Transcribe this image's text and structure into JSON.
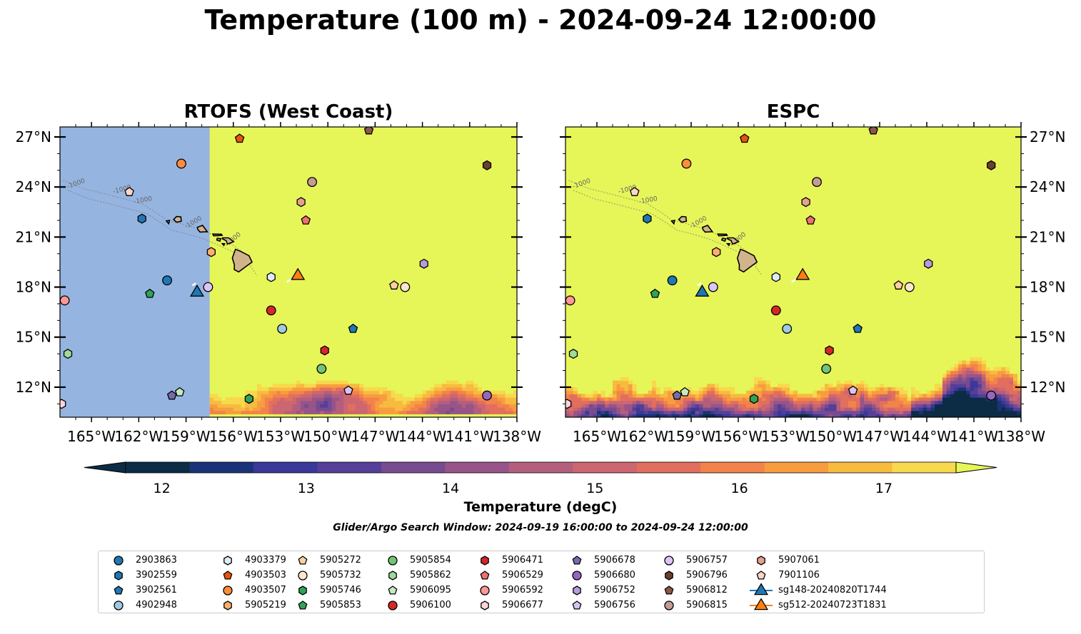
{
  "title": "Temperature (100 m) - 2024-09-24 12:00:00",
  "panels": [
    {
      "title": "RTOFS (West Coast)",
      "variant": "rtofs"
    },
    {
      "title": "ESPC",
      "variant": "espc"
    }
  ],
  "axes": {
    "lon_ticks": [
      "165°W",
      "162°W",
      "159°W",
      "156°W",
      "153°W",
      "150°W",
      "147°W",
      "144°W",
      "141°W",
      "138°W"
    ],
    "lat_ticks": [
      "27°N",
      "24°N",
      "21°N",
      "18°N",
      "15°N",
      "12°N"
    ],
    "lon_range": [
      -167,
      -138
    ],
    "lat_range": [
      10.2,
      27.6
    ]
  },
  "colorbar": {
    "label": "Temperature (degC)",
    "ticks": [
      "12",
      "13",
      "14",
      "15",
      "16",
      "17"
    ],
    "min": 11.75,
    "max": 17.5,
    "colors": [
      "#0c2c45",
      "#1a3378",
      "#3a3898",
      "#553f98",
      "#774b90",
      "#975488",
      "#b45e7e",
      "#cc6670",
      "#e26f5e",
      "#f2834a",
      "#f79d3f",
      "#f7bb40",
      "#f8d94e"
    ],
    "under_color": "#0c2c45",
    "over_color": "#e6f658",
    "land_mask_color": "#96b4e0"
  },
  "contour_label": "-1000",
  "search_window": "Glider/Argo Search Window: 2024-09-19 16:00:00 to 2024-09-24 12:00:00",
  "legend": [
    {
      "label": "2903863",
      "color": "#1f77b4",
      "shape": "circle"
    },
    {
      "label": "3902559",
      "color": "#1f77b4",
      "shape": "hexagon"
    },
    {
      "label": "3902561",
      "color": "#1f77b4",
      "shape": "pentagon"
    },
    {
      "label": "4902948",
      "color": "#9ecae1",
      "shape": "circle"
    },
    {
      "label": "4903379",
      "color": "#deebf7",
      "shape": "hexagon"
    },
    {
      "label": "4903503",
      "color": "#e6550d",
      "shape": "pentagon"
    },
    {
      "label": "4903507",
      "color": "#fd8d3c",
      "shape": "circle"
    },
    {
      "label": "5905219",
      "color": "#fdae6b",
      "shape": "hexagon"
    },
    {
      "label": "5905272",
      "color": "#fdd0a2",
      "shape": "pentagon"
    },
    {
      "label": "5905732",
      "color": "#fee6ce",
      "shape": "circle"
    },
    {
      "label": "5905746",
      "color": "#31a354",
      "shape": "hexagon"
    },
    {
      "label": "5905853",
      "color": "#31a354",
      "shape": "pentagon"
    },
    {
      "label": "5905854",
      "color": "#74c476",
      "shape": "circle"
    },
    {
      "label": "5905862",
      "color": "#a1d99b",
      "shape": "hexagon"
    },
    {
      "label": "5906095",
      "color": "#c7e9c0",
      "shape": "pentagon"
    },
    {
      "label": "5906100",
      "color": "#d62728",
      "shape": "circle"
    },
    {
      "label": "5906471",
      "color": "#d62728",
      "shape": "hexagon"
    },
    {
      "label": "5906529",
      "color": "#f07070",
      "shape": "pentagon"
    },
    {
      "label": "5906592",
      "color": "#ff9896",
      "shape": "circle"
    },
    {
      "label": "5906677",
      "color": "#ffd6d6",
      "shape": "hexagon"
    },
    {
      "label": "5906678",
      "color": "#756bb1",
      "shape": "pentagon"
    },
    {
      "label": "5906680",
      "color": "#9467bd",
      "shape": "circle"
    },
    {
      "label": "5906752",
      "color": "#b39ddb",
      "shape": "hexagon"
    },
    {
      "label": "5906756",
      "color": "#d8c4f0",
      "shape": "pentagon"
    },
    {
      "label": "5906757",
      "color": "#dcc6f5",
      "shape": "circle"
    },
    {
      "label": "5906796",
      "color": "#6b3e2e",
      "shape": "hexagon"
    },
    {
      "label": "5906812",
      "color": "#8c564b",
      "shape": "pentagon"
    },
    {
      "label": "5906815",
      "color": "#c49c94",
      "shape": "circle"
    },
    {
      "label": "5907061",
      "color": "#e6a08c",
      "shape": "hexagon"
    },
    {
      "label": "7901106",
      "color": "#fdd5c8",
      "shape": "pentagon"
    },
    {
      "label": "sg148-20240820T1744",
      "color": "#1f77b4",
      "shape": "triangle"
    },
    {
      "label": "sg512-20240723T1831",
      "color": "#ff7f0e",
      "shape": "triangle"
    }
  ],
  "observations": [
    {
      "id": "2903863",
      "lon": -160.2,
      "lat": 18.4
    },
    {
      "id": "3902559",
      "lon": -161.8,
      "lat": 22.1
    },
    {
      "id": "3902561",
      "lon": -148.4,
      "lat": 15.5
    },
    {
      "id": "4902948",
      "lon": -152.9,
      "lat": 15.5
    },
    {
      "id": "4903379",
      "lon": -153.6,
      "lat": 18.6
    },
    {
      "id": "4903503",
      "lon": -155.6,
      "lat": 26.9
    },
    {
      "id": "4903507",
      "lon": -159.3,
      "lat": 25.4
    },
    {
      "id": "5905219",
      "lon": -157.4,
      "lat": 20.1
    },
    {
      "id": "5905272",
      "lon": -145.8,
      "lat": 18.1
    },
    {
      "id": "5905732",
      "lon": -145.1,
      "lat": 18.0
    },
    {
      "id": "5905746",
      "lon": -155.0,
      "lat": 11.3
    },
    {
      "id": "5905853",
      "lon": -161.3,
      "lat": 17.6
    },
    {
      "id": "5905854",
      "lon": -150.4,
      "lat": 13.1
    },
    {
      "id": "5905862",
      "lon": -166.5,
      "lat": 14.0
    },
    {
      "id": "5906095",
      "lon": -159.4,
      "lat": 11.7
    },
    {
      "id": "5906100",
      "lon": -153.6,
      "lat": 16.6
    },
    {
      "id": "5906471",
      "lon": -150.2,
      "lat": 14.2
    },
    {
      "id": "5906529",
      "lon": -151.4,
      "lat": 22.0
    },
    {
      "id": "5906592",
      "lon": -166.7,
      "lat": 17.2
    },
    {
      "id": "5906677",
      "lon": -166.9,
      "lat": 11.0
    },
    {
      "id": "5906678",
      "lon": -159.9,
      "lat": 11.5
    },
    {
      "id": "5906680",
      "lon": -139.9,
      "lat": 11.5
    },
    {
      "id": "5906752",
      "lon": -143.9,
      "lat": 19.4
    },
    {
      "id": "5906756",
      "lon": -148.7,
      "lat": 11.8
    },
    {
      "id": "5906757",
      "lon": -157.6,
      "lat": 18.0
    },
    {
      "id": "5906796",
      "lon": -139.9,
      "lat": 25.3
    },
    {
      "id": "5906812",
      "lon": -147.4,
      "lat": 27.4
    },
    {
      "id": "5906815",
      "lon": -151.0,
      "lat": 24.3
    },
    {
      "id": "5907061",
      "lon": -151.7,
      "lat": 23.1
    },
    {
      "id": "7901106",
      "lon": -162.6,
      "lat": 23.7
    },
    {
      "id": "sg148-20240820T1744",
      "lon": -158.3,
      "lat": 17.7
    },
    {
      "id": "sg512-20240723T1831",
      "lon": -151.9,
      "lat": 18.7
    }
  ]
}
